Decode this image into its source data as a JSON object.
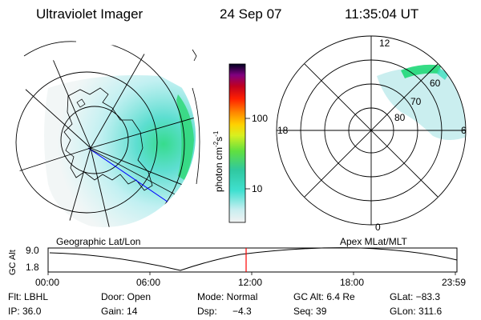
{
  "header": {
    "instrument": "Ultraviolet Imager",
    "date": "24 Sep 07",
    "time": "11:35:04 UT"
  },
  "colors": {
    "aurora_low": "#8ef0e0",
    "aurora_mid": "#40e0c0",
    "aurora_high": "#20e060",
    "terminator_line": "#0000ff",
    "time_marker": "#ff0000"
  },
  "left_panel": {
    "caption": "Geographic Lat/Lon"
  },
  "right_panel": {
    "caption": "Apex MLat/MLT",
    "mlt_labels": {
      "top": "12",
      "left": "18",
      "right": "6",
      "bottom": "0"
    },
    "lat_labels": [
      "80",
      "70",
      "60"
    ]
  },
  "colorbar": {
    "unit_label": "photon cm",
    "unit_sup1": "-2",
    "unit_mid": "s",
    "unit_sup2": "-1",
    "ticks": [
      "100",
      "10"
    ]
  },
  "altitude_plot": {
    "ylabel": "GC Alt",
    "yticks": [
      "9.0",
      "1.8"
    ],
    "xticks": [
      "00:00",
      "06:00",
      "12:00",
      "18:00",
      "23:59"
    ]
  },
  "footer": {
    "row1": {
      "flt": "Flt: LBHL",
      "door": "Door: Open",
      "mode": "Mode: Normal",
      "gcalt": "GC Alt: 6.4 Re",
      "glat": "GLat: −83.3"
    },
    "row2": {
      "ip": "IP: 36.0",
      "gain": "Gain: 14",
      "dsp_label": "Dsp:",
      "dsp_value": "−4.3",
      "seq": "Seq: 39",
      "glon": "GLon: 311.6"
    }
  }
}
